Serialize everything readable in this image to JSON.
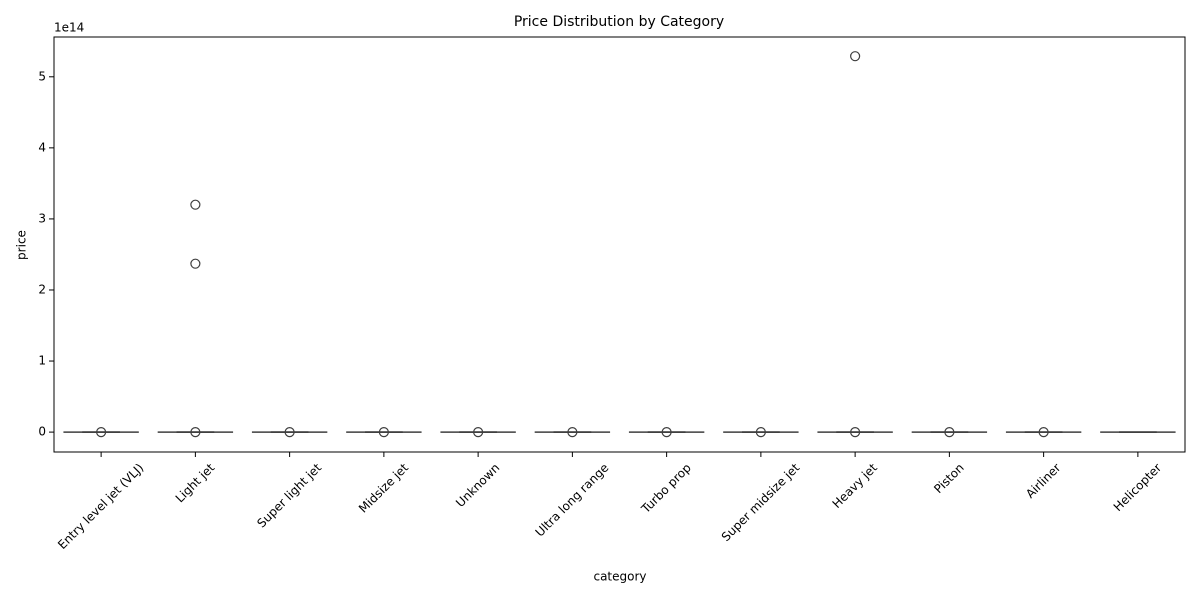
{
  "chart_data": {
    "type": "box",
    "title": "Price Distribution by Category",
    "xlabel": "category",
    "ylabel": "price",
    "offset_label": "1e14",
    "color": "#3f3f3f",
    "categories": [
      "Entry level jet (VLJ)",
      "Light jet",
      "Super light jet",
      "Midsize jet",
      "Unknown",
      "Ultra long range",
      "Turbo prop",
      "Super midsize jet",
      "Heavy jet",
      "Piston",
      "Airliner",
      "Helicopter"
    ],
    "boxes": [
      {
        "min": 0,
        "q1": 0,
        "median": 0,
        "q3": 0,
        "max": 0,
        "outliers": [
          0
        ]
      },
      {
        "min": 0,
        "q1": 0,
        "median": 0,
        "q3": 0,
        "max": 0,
        "outliers": [
          0,
          2.37,
          3.2
        ]
      },
      {
        "min": 0,
        "q1": 0,
        "median": 0,
        "q3": 0,
        "max": 0,
        "outliers": [
          0
        ]
      },
      {
        "min": 0,
        "q1": 0,
        "median": 0,
        "q3": 0,
        "max": 0,
        "outliers": [
          0
        ]
      },
      {
        "min": 0,
        "q1": 0,
        "median": 0,
        "q3": 0,
        "max": 0,
        "outliers": [
          0
        ]
      },
      {
        "min": 0,
        "q1": 0,
        "median": 0,
        "q3": 0,
        "max": 0,
        "outliers": [
          0
        ]
      },
      {
        "min": 0,
        "q1": 0,
        "median": 0,
        "q3": 0,
        "max": 0,
        "outliers": [
          0
        ]
      },
      {
        "min": 0,
        "q1": 0,
        "median": 0,
        "q3": 0,
        "max": 0,
        "outliers": [
          0
        ]
      },
      {
        "min": 0,
        "q1": 0,
        "median": 0,
        "q3": 0,
        "max": 0,
        "outliers": [
          0,
          5.29
        ]
      },
      {
        "min": 0,
        "q1": 0,
        "median": 0,
        "q3": 0,
        "max": 0,
        "outliers": [
          0
        ]
      },
      {
        "min": 0,
        "q1": 0,
        "median": 0,
        "q3": 0,
        "max": 0,
        "outliers": [
          0
        ]
      },
      {
        "min": 0,
        "q1": 0,
        "median": 0,
        "q3": 0,
        "max": 0,
        "outliers": []
      }
    ],
    "ylim": [
      -0.28,
      5.56
    ],
    "yticks": [
      0,
      1,
      2,
      3,
      4,
      5
    ]
  }
}
